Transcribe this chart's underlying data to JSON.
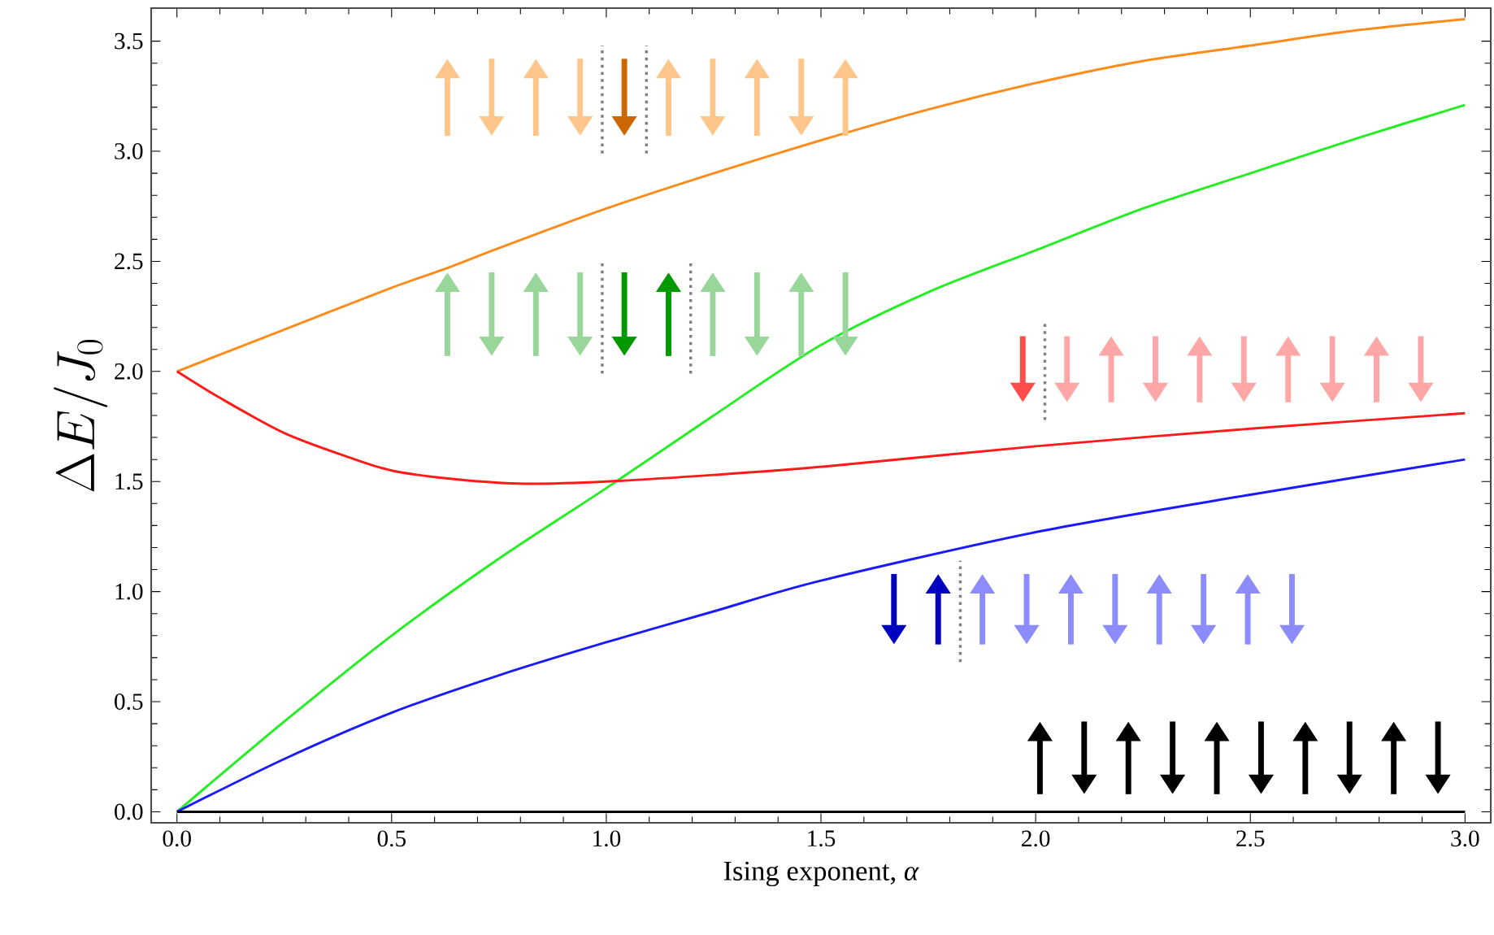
{
  "chart_data": {
    "type": "line",
    "xlabel": "Ising exponent, *α*",
    "ylabel": "\\Delta E/J_0",
    "xlim": [
      -0.06,
      3.06
    ],
    "ylim": [
      -0.05,
      3.65
    ],
    "xticks": [
      {
        "value": 0,
        "label": "0.0"
      },
      {
        "value": 0.5,
        "label": "0.5"
      },
      {
        "value": 1,
        "label": "1.0"
      },
      {
        "value": 1.5,
        "label": "1.5"
      },
      {
        "value": 2,
        "label": "2.0"
      },
      {
        "value": 2.5,
        "label": "2.5"
      },
      {
        "value": 3,
        "label": "3.0"
      }
    ],
    "yticks": [
      {
        "value": 0,
        "label": "0.0"
      },
      {
        "value": 0.5,
        "label": "0.5"
      },
      {
        "value": 1,
        "label": "1.0"
      },
      {
        "value": 1.5,
        "label": "1.5"
      },
      {
        "value": 2,
        "label": "2.0"
      },
      {
        "value": 2.5,
        "label": "2.5"
      },
      {
        "value": 3,
        "label": "3.0"
      },
      {
        "value": 3.5,
        "label": "3.5"
      }
    ],
    "grid": false,
    "marker": "none",
    "line_style": "solid",
    "series": [
      {
        "color": "#ff8c1a",
        "x": [
          0,
          0.25,
          0.5,
          0.63,
          0.75,
          1.0,
          1.25,
          1.5,
          1.75,
          2.0,
          2.25,
          2.5,
          2.75,
          3.0
        ],
        "values": [
          2.0,
          2.19,
          2.38,
          2.47,
          2.56,
          2.74,
          2.9,
          3.05,
          3.19,
          3.31,
          3.41,
          3.48,
          3.55,
          3.6
        ]
      },
      {
        "color": "#22ee22",
        "x": [
          0,
          0.25,
          0.5,
          0.75,
          1.0,
          1.25,
          1.5,
          1.75,
          2.0,
          2.25,
          2.5,
          2.75,
          3.0
        ],
        "values": [
          0,
          0.41,
          0.8,
          1.15,
          1.47,
          1.8,
          2.12,
          2.36,
          2.55,
          2.74,
          2.9,
          3.06,
          3.21
        ]
      },
      {
        "color": "#ff1a1a",
        "x": [
          0,
          0.1,
          0.25,
          0.4,
          0.5,
          0.65,
          0.81,
          1.0,
          1.25,
          1.52,
          2.0,
          2.5,
          3.0
        ],
        "values": [
          2.0,
          1.88,
          1.72,
          1.61,
          1.55,
          1.51,
          1.49,
          1.5,
          1.53,
          1.57,
          1.66,
          1.74,
          1.81
        ]
      },
      {
        "color": "#1a1aff",
        "x": [
          0,
          0.25,
          0.5,
          0.75,
          1.0,
          1.25,
          1.5,
          2.0,
          2.5,
          3.0
        ],
        "values": [
          0,
          0.24,
          0.45,
          0.62,
          0.77,
          0.91,
          1.05,
          1.27,
          1.44,
          1.6
        ]
      },
      {
        "color": "#000000",
        "x": [
          0,
          3.0
        ],
        "values": [
          0,
          0
        ]
      }
    ]
  }
}
